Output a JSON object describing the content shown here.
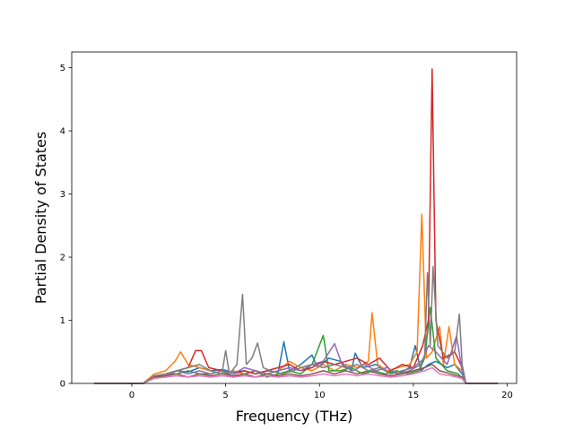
{
  "chart_data": {
    "type": "line",
    "title": "",
    "xlabel": "Frequency (THz)",
    "ylabel": "Partial Density of States",
    "xlim": [
      -3.2,
      20.5
    ],
    "ylim": [
      0,
      5.25
    ],
    "x_ticks": [
      0,
      5,
      10,
      15,
      20
    ],
    "y_ticks": [
      0,
      1,
      2,
      3,
      4,
      5
    ],
    "grid": false,
    "legend": "none",
    "x_range_of_data": [
      -2.0,
      19.5
    ],
    "series": [
      {
        "color": "#1f77b4",
        "points": [
          [
            -2,
            0
          ],
          [
            0.6,
            0
          ],
          [
            1.2,
            0.1
          ],
          [
            1.8,
            0.15
          ],
          [
            2.4,
            0.2
          ],
          [
            3,
            0.18
          ],
          [
            3.6,
            0.25
          ],
          [
            4.2,
            0.2
          ],
          [
            4.8,
            0.22
          ],
          [
            5.4,
            0.18
          ],
          [
            6,
            0.2
          ],
          [
            6.6,
            0.15
          ],
          [
            7.2,
            0.2
          ],
          [
            7.8,
            0.18
          ],
          [
            8.1,
            0.66
          ],
          [
            8.4,
            0.2
          ],
          [
            9,
            0.3
          ],
          [
            9.6,
            0.45
          ],
          [
            9.9,
            0.25
          ],
          [
            10.5,
            0.4
          ],
          [
            11.1,
            0.35
          ],
          [
            11.7,
            0.2
          ],
          [
            11.9,
            0.48
          ],
          [
            12.3,
            0.25
          ],
          [
            13,
            0.3
          ],
          [
            13.6,
            0.2
          ],
          [
            14.2,
            0.15
          ],
          [
            14.8,
            0.25
          ],
          [
            15.1,
            0.6
          ],
          [
            15.4,
            0.2
          ],
          [
            15.8,
            0.3
          ],
          [
            16.2,
            0.35
          ],
          [
            16.8,
            0.25
          ],
          [
            17.2,
            0.3
          ],
          [
            17.6,
            0.15
          ],
          [
            17.8,
            0
          ],
          [
            19.5,
            0
          ]
        ]
      },
      {
        "color": "#ff7f0e",
        "points": [
          [
            -2,
            0
          ],
          [
            0.6,
            0
          ],
          [
            1.2,
            0.15
          ],
          [
            1.8,
            0.2
          ],
          [
            2.3,
            0.35
          ],
          [
            2.6,
            0.5
          ],
          [
            3,
            0.3
          ],
          [
            3.6,
            0.25
          ],
          [
            4.2,
            0.2
          ],
          [
            4.8,
            0.15
          ],
          [
            5.4,
            0.2
          ],
          [
            6,
            0.15
          ],
          [
            6.6,
            0.2
          ],
          [
            7.2,
            0.15
          ],
          [
            7.8,
            0.2
          ],
          [
            8.4,
            0.35
          ],
          [
            9,
            0.25
          ],
          [
            9.6,
            0.2
          ],
          [
            10.2,
            0.3
          ],
          [
            10.8,
            0.2
          ],
          [
            11.4,
            0.3
          ],
          [
            12,
            0.25
          ],
          [
            12.6,
            0.35
          ],
          [
            12.8,
            1.12
          ],
          [
            13.1,
            0.3
          ],
          [
            13.6,
            0.2
          ],
          [
            14.2,
            0.25
          ],
          [
            14.8,
            0.3
          ],
          [
            15.2,
            0.5
          ],
          [
            15.45,
            2.68
          ],
          [
            15.7,
            0.4
          ],
          [
            16,
            0.5
          ],
          [
            16.4,
            0.9
          ],
          [
            16.6,
            0.3
          ],
          [
            16.9,
            0.9
          ],
          [
            17.2,
            0.3
          ],
          [
            17.6,
            0.2
          ],
          [
            17.8,
            0
          ],
          [
            19.5,
            0
          ]
        ]
      },
      {
        "color": "#2ca02c",
        "points": [
          [
            -2,
            0
          ],
          [
            0.6,
            0
          ],
          [
            1.2,
            0.1
          ],
          [
            1.8,
            0.15
          ],
          [
            2.4,
            0.15
          ],
          [
            3,
            0.2
          ],
          [
            3.6,
            0.15
          ],
          [
            4.2,
            0.15
          ],
          [
            4.8,
            0.2
          ],
          [
            5.4,
            0.1
          ],
          [
            6,
            0.15
          ],
          [
            6.6,
            0.2
          ],
          [
            7.2,
            0.1
          ],
          [
            7.8,
            0.15
          ],
          [
            8.4,
            0.2
          ],
          [
            9,
            0.15
          ],
          [
            9.6,
            0.3
          ],
          [
            10.2,
            0.76
          ],
          [
            10.5,
            0.2
          ],
          [
            11.1,
            0.2
          ],
          [
            11.7,
            0.25
          ],
          [
            12.3,
            0.15
          ],
          [
            12.9,
            0.2
          ],
          [
            13.5,
            0.15
          ],
          [
            14.1,
            0.2
          ],
          [
            14.7,
            0.15
          ],
          [
            15.3,
            0.2
          ],
          [
            15.6,
            0.4
          ],
          [
            15.9,
            1.2
          ],
          [
            16.2,
            0.4
          ],
          [
            16.8,
            0.2
          ],
          [
            17.4,
            0.15
          ],
          [
            17.8,
            0
          ],
          [
            19.5,
            0
          ]
        ]
      },
      {
        "color": "#d62728",
        "points": [
          [
            -2,
            0
          ],
          [
            0.6,
            0
          ],
          [
            1.2,
            0.12
          ],
          [
            1.8,
            0.15
          ],
          [
            2.4,
            0.2
          ],
          [
            3,
            0.25
          ],
          [
            3.4,
            0.52
          ],
          [
            3.7,
            0.52
          ],
          [
            4.1,
            0.25
          ],
          [
            4.8,
            0.2
          ],
          [
            5.4,
            0.15
          ],
          [
            6,
            0.2
          ],
          [
            6.6,
            0.15
          ],
          [
            7.2,
            0.2
          ],
          [
            7.8,
            0.25
          ],
          [
            8.4,
            0.3
          ],
          [
            9,
            0.2
          ],
          [
            9.6,
            0.25
          ],
          [
            10.2,
            0.35
          ],
          [
            10.8,
            0.3
          ],
          [
            11.4,
            0.35
          ],
          [
            12,
            0.4
          ],
          [
            12.6,
            0.3
          ],
          [
            13.2,
            0.4
          ],
          [
            13.8,
            0.2
          ],
          [
            14.4,
            0.3
          ],
          [
            15,
            0.25
          ],
          [
            15.5,
            0.6
          ],
          [
            15.8,
            1.0
          ],
          [
            16.0,
            4.98
          ],
          [
            16.2,
            1.0
          ],
          [
            16.6,
            0.4
          ],
          [
            17.2,
            0.5
          ],
          [
            17.6,
            0.25
          ],
          [
            17.8,
            0
          ],
          [
            19.5,
            0
          ]
        ]
      },
      {
        "color": "#9467bd",
        "points": [
          [
            -2,
            0
          ],
          [
            0.6,
            0
          ],
          [
            1.2,
            0.1
          ],
          [
            1.8,
            0.12
          ],
          [
            2.4,
            0.2
          ],
          [
            3,
            0.15
          ],
          [
            3.6,
            0.2
          ],
          [
            4.2,
            0.15
          ],
          [
            4.8,
            0.2
          ],
          [
            5.4,
            0.15
          ],
          [
            6,
            0.25
          ],
          [
            6.6,
            0.2
          ],
          [
            7.2,
            0.15
          ],
          [
            7.8,
            0.2
          ],
          [
            8.4,
            0.25
          ],
          [
            9,
            0.2
          ],
          [
            9.6,
            0.3
          ],
          [
            10.2,
            0.35
          ],
          [
            10.8,
            0.63
          ],
          [
            11.2,
            0.3
          ],
          [
            11.8,
            0.2
          ],
          [
            12.4,
            0.3
          ],
          [
            13,
            0.2
          ],
          [
            13.6,
            0.25
          ],
          [
            14.2,
            0.15
          ],
          [
            14.8,
            0.2
          ],
          [
            15.4,
            0.3
          ],
          [
            15.8,
            0.6
          ],
          [
            16.2,
            0.5
          ],
          [
            16.8,
            0.3
          ],
          [
            17.3,
            0.75
          ],
          [
            17.6,
            0.2
          ],
          [
            17.8,
            0
          ],
          [
            19.5,
            0
          ]
        ]
      },
      {
        "color": "#8c564b",
        "points": [
          [
            -2,
            0
          ],
          [
            0.6,
            0
          ],
          [
            1.2,
            0.1
          ],
          [
            1.8,
            0.12
          ],
          [
            2.4,
            0.15
          ],
          [
            3,
            0.1
          ],
          [
            3.6,
            0.15
          ],
          [
            4.2,
            0.12
          ],
          [
            4.8,
            0.15
          ],
          [
            5.4,
            0.12
          ],
          [
            6,
            0.15
          ],
          [
            6.6,
            0.1
          ],
          [
            7.2,
            0.15
          ],
          [
            7.8,
            0.12
          ],
          [
            8.4,
            0.15
          ],
          [
            9,
            0.12
          ],
          [
            9.6,
            0.15
          ],
          [
            10.2,
            0.2
          ],
          [
            10.8,
            0.15
          ],
          [
            11.4,
            0.2
          ],
          [
            12,
            0.15
          ],
          [
            12.6,
            0.2
          ],
          [
            13.2,
            0.15
          ],
          [
            13.8,
            0.12
          ],
          [
            14.4,
            0.15
          ],
          [
            15,
            0.2
          ],
          [
            15.6,
            0.25
          ],
          [
            16,
            0.3
          ],
          [
            16.4,
            0.2
          ],
          [
            17,
            0.15
          ],
          [
            17.6,
            0.1
          ],
          [
            17.8,
            0
          ],
          [
            19.5,
            0
          ]
        ]
      },
      {
        "color": "#e377c2",
        "points": [
          [
            -2,
            0
          ],
          [
            0.6,
            0
          ],
          [
            1.2,
            0.08
          ],
          [
            1.8,
            0.1
          ],
          [
            2.4,
            0.12
          ],
          [
            3,
            0.1
          ],
          [
            3.6,
            0.12
          ],
          [
            4.2,
            0.1
          ],
          [
            4.8,
            0.12
          ],
          [
            5.4,
            0.1
          ],
          [
            6,
            0.12
          ],
          [
            6.6,
            0.1
          ],
          [
            7.2,
            0.12
          ],
          [
            7.8,
            0.1
          ],
          [
            8.4,
            0.12
          ],
          [
            9,
            0.1
          ],
          [
            9.6,
            0.12
          ],
          [
            10.2,
            0.15
          ],
          [
            10.8,
            0.12
          ],
          [
            11.4,
            0.15
          ],
          [
            12,
            0.12
          ],
          [
            12.6,
            0.15
          ],
          [
            13.2,
            0.12
          ],
          [
            13.8,
            0.1
          ],
          [
            14.4,
            0.12
          ],
          [
            15,
            0.15
          ],
          [
            15.6,
            0.2
          ],
          [
            16,
            0.25
          ],
          [
            16.4,
            0.15
          ],
          [
            17,
            0.12
          ],
          [
            17.6,
            0.08
          ],
          [
            17.8,
            0
          ],
          [
            19.5,
            0
          ]
        ]
      },
      {
        "color": "#7f7f7f",
        "points": [
          [
            -2,
            0
          ],
          [
            0.6,
            0
          ],
          [
            1.2,
            0.12
          ],
          [
            1.8,
            0.15
          ],
          [
            2.4,
            0.2
          ],
          [
            3,
            0.25
          ],
          [
            3.6,
            0.3
          ],
          [
            4.2,
            0.2
          ],
          [
            4.8,
            0.15
          ],
          [
            5.0,
            0.52
          ],
          [
            5.2,
            0.15
          ],
          [
            5.6,
            0.3
          ],
          [
            5.9,
            1.41
          ],
          [
            6.1,
            0.3
          ],
          [
            6.4,
            0.4
          ],
          [
            6.7,
            0.64
          ],
          [
            7,
            0.25
          ],
          [
            7.4,
            0.2
          ],
          [
            8,
            0.15
          ],
          [
            8.6,
            0.2
          ],
          [
            9,
            0.25
          ],
          [
            9.6,
            0.3
          ],
          [
            10.2,
            0.25
          ],
          [
            10.8,
            0.3
          ],
          [
            11.4,
            0.25
          ],
          [
            12,
            0.3
          ],
          [
            12.6,
            0.2
          ],
          [
            13.2,
            0.25
          ],
          [
            13.8,
            0.15
          ],
          [
            14.4,
            0.2
          ],
          [
            15,
            0.25
          ],
          [
            15.6,
            0.4
          ],
          [
            15.75,
            1.75
          ],
          [
            15.9,
            0.6
          ],
          [
            16.05,
            1.85
          ],
          [
            16.3,
            0.6
          ],
          [
            16.8,
            0.4
          ],
          [
            17.2,
            0.5
          ],
          [
            17.45,
            1.1
          ],
          [
            17.6,
            0.3
          ],
          [
            17.8,
            0
          ],
          [
            19.5,
            0
          ]
        ]
      }
    ]
  }
}
